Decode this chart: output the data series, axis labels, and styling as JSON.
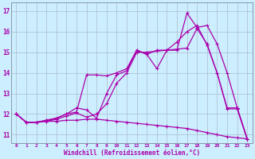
{
  "bg_color": "#cceeff",
  "line_color": "#aa00aa",
  "grid_color": "#aabbcc",
  "xlabel": "Windchill (Refroidissement éolien,°C)",
  "ylabel_ticks": [
    11,
    12,
    13,
    14,
    15,
    16,
    17
  ],
  "xlim": [
    -0.5,
    23.5
  ],
  "ylim": [
    10.6,
    17.4
  ],
  "xticks": [
    0,
    1,
    2,
    3,
    4,
    5,
    6,
    7,
    8,
    9,
    10,
    11,
    12,
    13,
    14,
    15,
    16,
    17,
    18,
    19,
    20,
    21,
    22,
    23
  ],
  "series1_x": [
    0,
    1,
    2,
    3,
    4,
    5,
    6,
    7,
    8,
    9,
    10,
    11,
    12,
    13,
    14,
    15,
    16,
    17,
    18,
    19,
    20,
    21,
    22,
    23
  ],
  "series1_y": [
    12.0,
    11.6,
    11.6,
    11.65,
    11.65,
    11.7,
    11.7,
    11.75,
    11.75,
    11.7,
    11.65,
    11.6,
    11.55,
    11.5,
    11.45,
    11.4,
    11.35,
    11.3,
    11.2,
    11.1,
    11.0,
    10.9,
    10.85,
    10.8
  ],
  "series2_x": [
    0,
    1,
    2,
    3,
    4,
    5,
    6,
    7,
    8,
    9,
    10,
    11,
    12,
    13,
    14,
    15,
    16,
    17,
    18,
    19,
    20,
    21,
    22,
    23
  ],
  "series2_y": [
    12.0,
    11.6,
    11.6,
    11.7,
    11.8,
    12.0,
    12.3,
    12.2,
    11.8,
    13.0,
    13.9,
    14.1,
    15.1,
    14.9,
    15.1,
    15.1,
    15.1,
    16.9,
    16.2,
    16.3,
    15.4,
    14.0,
    12.3,
    10.8
  ],
  "series3_x": [
    0,
    1,
    2,
    3,
    4,
    5,
    6,
    7,
    8,
    9,
    10,
    11,
    12,
    13,
    14,
    15,
    16,
    17,
    18,
    19,
    20,
    21,
    22,
    23
  ],
  "series3_y": [
    12.0,
    11.6,
    11.6,
    11.7,
    11.8,
    12.0,
    12.1,
    13.9,
    13.9,
    13.85,
    14.0,
    14.2,
    15.1,
    14.9,
    14.2,
    15.1,
    15.15,
    15.2,
    16.15,
    15.4,
    14.0,
    12.3,
    12.3,
    10.8
  ],
  "series4_x": [
    0,
    1,
    2,
    3,
    4,
    5,
    6,
    7,
    8,
    9,
    10,
    11,
    12,
    13,
    14,
    15,
    16,
    17,
    18,
    19,
    20,
    21,
    22,
    23
  ],
  "series4_y": [
    12.0,
    11.6,
    11.6,
    11.65,
    11.75,
    11.9,
    12.05,
    11.85,
    12.0,
    12.5,
    13.5,
    14.0,
    15.0,
    15.0,
    15.05,
    15.1,
    15.5,
    16.0,
    16.3,
    15.35,
    14.0,
    12.25,
    12.25,
    10.78
  ]
}
